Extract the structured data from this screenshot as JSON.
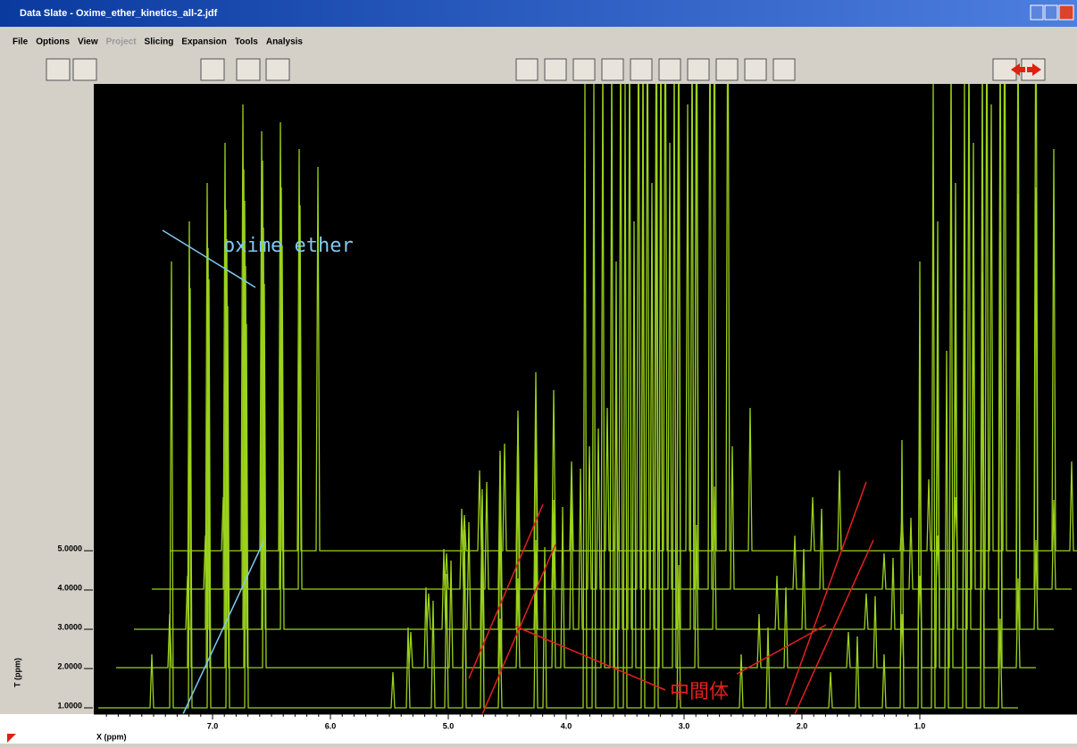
{
  "window": {
    "title": "Data Slate - Oxime_ether_kinetics_all-2.jdf"
  },
  "menu": [
    "File",
    "Options",
    "View",
    "Project",
    "Slicing",
    "Expansion",
    "Tools",
    "Analysis"
  ],
  "plot": {
    "y_axis_label": "T (ppm)",
    "x_axis_label": "X (ppm)",
    "y_ticks": [
      "1.0000",
      "2.0000",
      "3.0000",
      "4.0000",
      "5.0000"
    ],
    "x_ticks": [
      "7.0",
      "6.0",
      "5.0",
      "4.0",
      "3.0",
      "2.0",
      "1.0"
    ],
    "annotations": {
      "product": "oxime ether",
      "intermediate": "中間体"
    }
  }
}
